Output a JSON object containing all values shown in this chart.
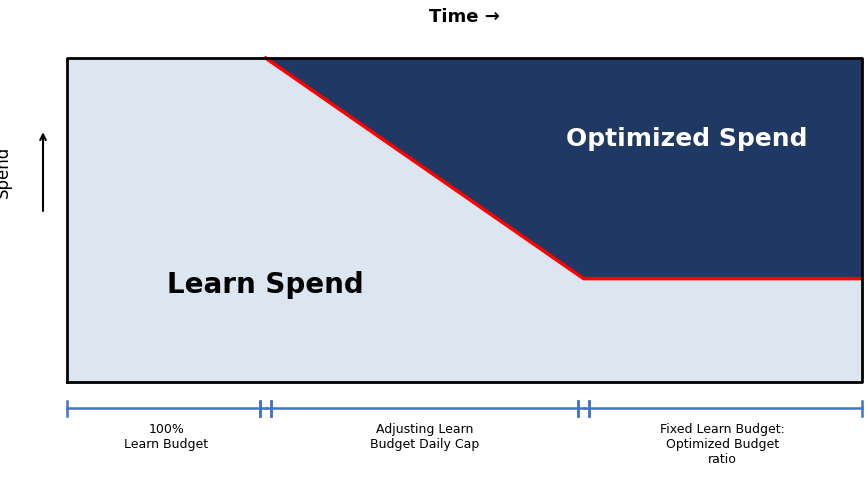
{
  "title": "Time →",
  "ylabel": "Spend",
  "bg_color": "#ffffff",
  "plot_bg_color": "#dce6f1",
  "dark_blue": "#1f3864",
  "red_line_color": "#ff0000",
  "border_color": "#000000",
  "bracket_color": "#4472c4",
  "x_min": 0,
  "x_max": 10,
  "y_min": 0,
  "y_max": 10,
  "phase1_end": 2.5,
  "phase2_end": 6.5,
  "phase3_end": 10,
  "red_line_x": [
    2.5,
    6.5,
    10
  ],
  "red_line_y": [
    10,
    3.2,
    3.2
  ],
  "learn_spend_label": "Learn Spend",
  "optimized_spend_label": "Optimized Spend",
  "bracket_labels": [
    "100%\nLearn Budget",
    "Adjusting Learn\nBudget Daily Cap",
    "Fixed Learn Budget:\nOptimized Budget\nratio"
  ],
  "learn_spend_x": 2.5,
  "learn_spend_y": 3.0,
  "optimized_spend_x": 7.8,
  "optimized_spend_y": 7.5
}
